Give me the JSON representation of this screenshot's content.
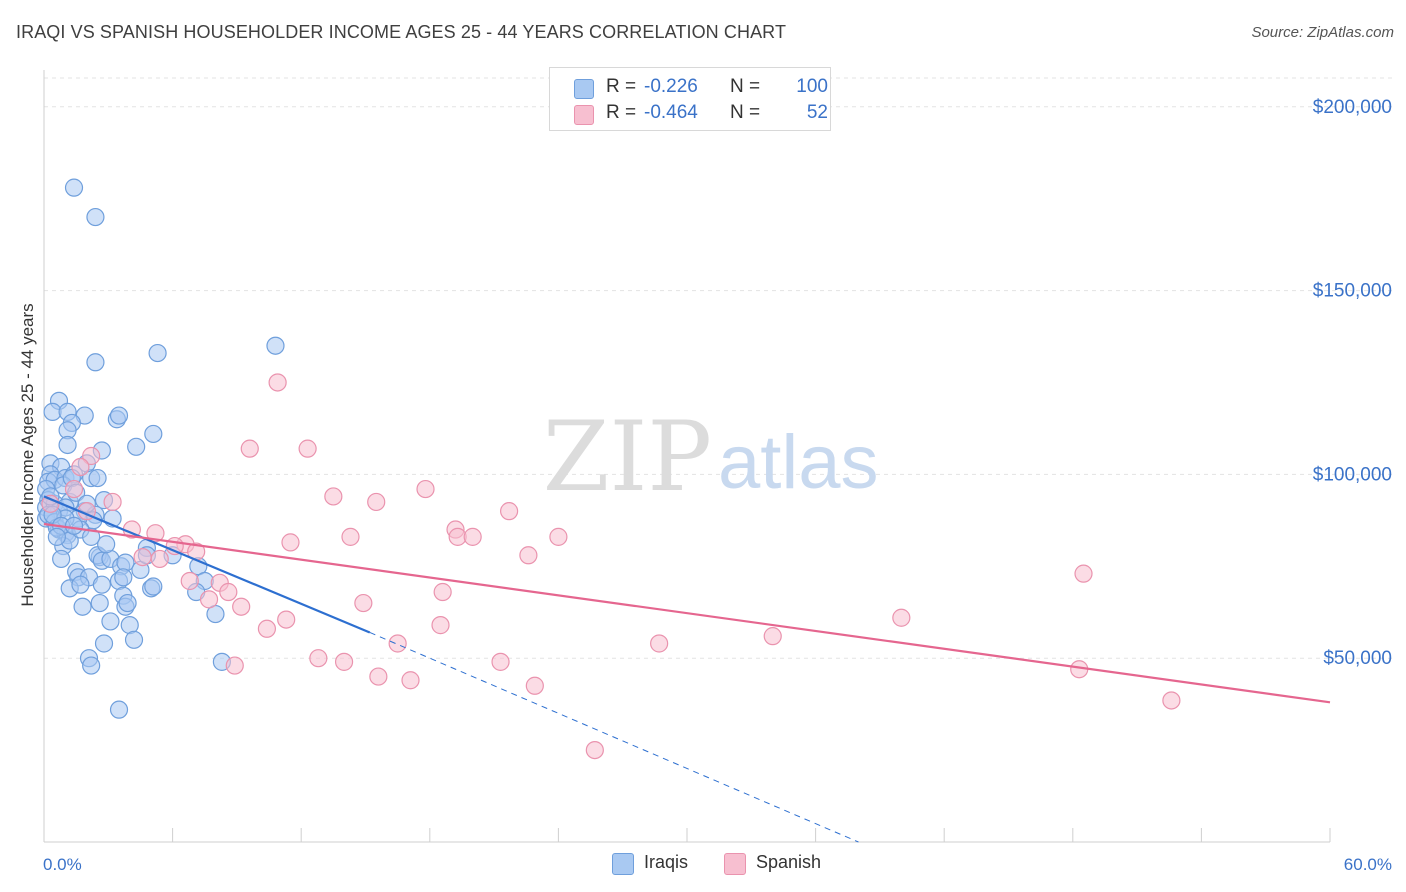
{
  "title": "IRAQI VS SPANISH HOUSEHOLDER INCOME AGES 25 - 44 YEARS CORRELATION CHART",
  "source": "Source: ZipAtlas.com",
  "watermark": {
    "zip": "ZIP",
    "atlas": "atlas"
  },
  "legend": {
    "rows": [
      {
        "r_label": "R =",
        "r_value": "-0.226",
        "n_label": "N =",
        "n_value": "100"
      },
      {
        "r_label": "R =",
        "r_value": "-0.464",
        "n_label": "N =",
        "n_value": "52"
      }
    ]
  },
  "bottom_legend": [
    {
      "label": "Iraqis"
    },
    {
      "label": "Spanish"
    }
  ],
  "chart_data": {
    "type": "scatter",
    "title": "IRAQI VS SPANISH HOUSEHOLDER INCOME AGES 25 - 44 YEARS CORRELATION CHART",
    "xlabel": "",
    "ylabel": "Householder Income Ages 25 - 44 years",
    "xlim": [
      0,
      60
    ],
    "ylim": [
      0,
      210000
    ],
    "x_tick_labels": [
      "0.0%",
      "60.0%"
    ],
    "y_ticks": [
      50000,
      100000,
      150000,
      200000
    ],
    "y_tick_labels": [
      "$50,000",
      "$100,000",
      "$150,000",
      "$200,000"
    ],
    "grid": true,
    "legend_position": "top-center",
    "colors": {
      "iraqis_fill": "#a9c9f2",
      "iraqis_stroke": "#6f9fdc",
      "iraqis_line": "#2d6fd0",
      "spanish_fill": "#f7bfd0",
      "spanish_stroke": "#ea93ae",
      "spanish_line": "#e5668f",
      "axis_text": "#3a72c8",
      "grid": "#e3e3e3"
    },
    "series": [
      {
        "name": "Iraqis",
        "trend": {
          "x0": 0,
          "y0": 94000,
          "x1": 15.2,
          "y1": 57000,
          "dash_to_x": 38,
          "dash_to_y": 0
        },
        "points": [
          [
            1.4,
            178000
          ],
          [
            2.4,
            170000
          ],
          [
            10.8,
            135000
          ],
          [
            2.4,
            130500
          ],
          [
            5.3,
            133000
          ],
          [
            0.7,
            120000
          ],
          [
            0.4,
            117000
          ],
          [
            1.1,
            117000
          ],
          [
            1.9,
            116000
          ],
          [
            1.3,
            114000
          ],
          [
            3.4,
            115000
          ],
          [
            3.5,
            116000
          ],
          [
            5.1,
            111000
          ],
          [
            1.1,
            112000
          ],
          [
            4.3,
            107500
          ],
          [
            2.7,
            106500
          ],
          [
            1.1,
            108000
          ],
          [
            0.3,
            103000
          ],
          [
            0.8,
            102000
          ],
          [
            0.3,
            100000
          ],
          [
            0.2,
            98000
          ],
          [
            0.5,
            98500
          ],
          [
            1.0,
            99000
          ],
          [
            2.2,
            99000
          ],
          [
            2.5,
            99000
          ],
          [
            1.4,
            100000
          ],
          [
            0.9,
            97000
          ],
          [
            2.0,
            103000
          ],
          [
            0.1,
            96000
          ],
          [
            0.2,
            93000
          ],
          [
            0.1,
            91000
          ],
          [
            0.5,
            92000
          ],
          [
            1.2,
            92500
          ],
          [
            2.8,
            93000
          ],
          [
            0.7,
            90000
          ],
          [
            1.9,
            90000
          ],
          [
            1.0,
            91000
          ],
          [
            2.4,
            89000
          ],
          [
            0.1,
            88000
          ],
          [
            0.2,
            89000
          ],
          [
            0.5,
            87000
          ],
          [
            2.3,
            87500
          ],
          [
            1.6,
            88000
          ],
          [
            0.7,
            85000
          ],
          [
            1.0,
            84000
          ],
          [
            1.1,
            83500
          ],
          [
            0.9,
            80500
          ],
          [
            0.8,
            77000
          ],
          [
            2.6,
            77500
          ],
          [
            2.5,
            78000
          ],
          [
            2.7,
            76500
          ],
          [
            3.1,
            77000
          ],
          [
            3.6,
            75000
          ],
          [
            4.5,
            74000
          ],
          [
            3.8,
            76000
          ],
          [
            7.2,
            75000
          ],
          [
            4.8,
            80000
          ],
          [
            4.8,
            78000
          ],
          [
            6.0,
            78000
          ],
          [
            1.5,
            73500
          ],
          [
            1.6,
            72000
          ],
          [
            2.1,
            72000
          ],
          [
            1.2,
            69000
          ],
          [
            1.7,
            70000
          ],
          [
            2.7,
            70000
          ],
          [
            3.5,
            71000
          ],
          [
            3.7,
            72000
          ],
          [
            5.0,
            69000
          ],
          [
            5.1,
            69500
          ],
          [
            7.5,
            71000
          ],
          [
            7.1,
            68000
          ],
          [
            1.8,
            64000
          ],
          [
            2.6,
            65000
          ],
          [
            3.7,
            67000
          ],
          [
            3.8,
            64000
          ],
          [
            3.9,
            65000
          ],
          [
            8.0,
            62000
          ],
          [
            4.0,
            59000
          ],
          [
            3.1,
            60000
          ],
          [
            2.8,
            54000
          ],
          [
            4.2,
            55000
          ],
          [
            2.1,
            50000
          ],
          [
            2.2,
            48000
          ],
          [
            8.3,
            49000
          ],
          [
            3.5,
            36000
          ],
          [
            0.6,
            85500
          ],
          [
            1.3,
            99000
          ],
          [
            1.5,
            95000
          ],
          [
            0.3,
            94000
          ],
          [
            1.0,
            88000
          ],
          [
            2.0,
            92000
          ],
          [
            0.4,
            89000
          ],
          [
            3.2,
            88000
          ],
          [
            1.2,
            82000
          ],
          [
            0.8,
            86000
          ],
          [
            1.7,
            85000
          ],
          [
            2.9,
            81000
          ],
          [
            0.6,
            83000
          ],
          [
            1.4,
            86000
          ],
          [
            2.2,
            83000
          ]
        ]
      },
      {
        "name": "Spanish",
        "trend": {
          "x0": 0,
          "y0": 86500,
          "x1": 60,
          "y1": 38000
        },
        "points": [
          [
            10.9,
            125000
          ],
          [
            9.6,
            107000
          ],
          [
            12.3,
            107000
          ],
          [
            2.2,
            105000
          ],
          [
            1.7,
            102000
          ],
          [
            3.2,
            92500
          ],
          [
            13.5,
            94000
          ],
          [
            15.5,
            92500
          ],
          [
            17.8,
            96000
          ],
          [
            21.7,
            90000
          ],
          [
            11.5,
            81500
          ],
          [
            14.3,
            83000
          ],
          [
            19.2,
            85000
          ],
          [
            19.3,
            83000
          ],
          [
            20.0,
            83000
          ],
          [
            24.0,
            83000
          ],
          [
            22.6,
            78000
          ],
          [
            5.2,
            84000
          ],
          [
            6.6,
            81000
          ],
          [
            7.1,
            79000
          ],
          [
            5.4,
            77000
          ],
          [
            4.1,
            85000
          ],
          [
            6.1,
            80500
          ],
          [
            8.2,
            70500
          ],
          [
            8.6,
            68000
          ],
          [
            7.7,
            66000
          ],
          [
            9.2,
            64000
          ],
          [
            11.3,
            60500
          ],
          [
            10.4,
            58000
          ],
          [
            14.9,
            65000
          ],
          [
            18.6,
            68000
          ],
          [
            16.5,
            54000
          ],
          [
            18.5,
            59000
          ],
          [
            28.7,
            54000
          ],
          [
            34.0,
            56000
          ],
          [
            40.0,
            61000
          ],
          [
            48.5,
            73000
          ],
          [
            52.6,
            38500
          ],
          [
            48.3,
            47000
          ],
          [
            8.9,
            48000
          ],
          [
            12.8,
            50000
          ],
          [
            14.0,
            49000
          ],
          [
            15.6,
            45000
          ],
          [
            17.1,
            44000
          ],
          [
            21.3,
            49000
          ],
          [
            22.9,
            42500
          ],
          [
            25.7,
            25000
          ],
          [
            1.4,
            96000
          ],
          [
            0.3,
            92000
          ],
          [
            2.0,
            90000
          ],
          [
            4.6,
            77500
          ],
          [
            6.8,
            71000
          ]
        ]
      }
    ]
  }
}
